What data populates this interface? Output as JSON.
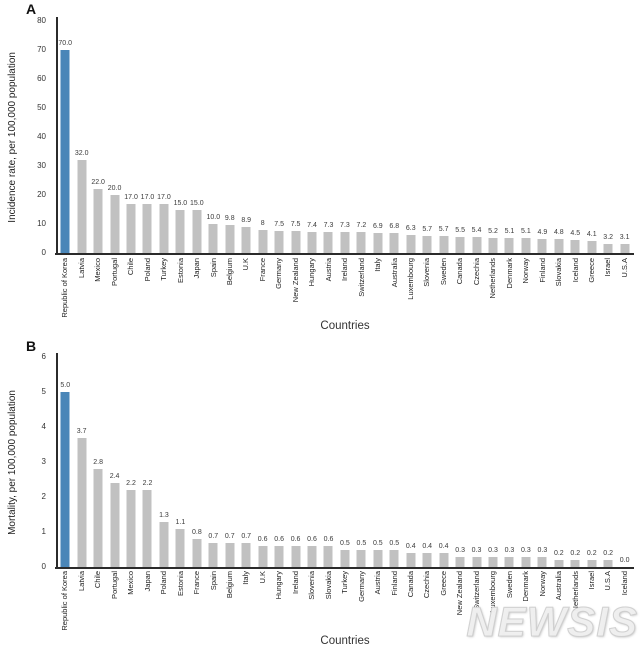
{
  "watermark": {
    "text": "NEWSIS"
  },
  "chart_data": [
    {
      "type": "bar",
      "panel": "A",
      "ylabel": "Incidence rate, per 100,000 population",
      "xlabel": "Countries",
      "ylim": [
        0,
        80
      ],
      "yticks": [
        0,
        10,
        20,
        30,
        40,
        50,
        60,
        70,
        80
      ],
      "grid": false,
      "legend": false,
      "highlight_index": 0,
      "highlight_color": "#4a86b8",
      "bar_color": "#c1c1c1",
      "categories": [
        "Republic of Korea",
        "Latvia",
        "Mexico",
        "Portugal",
        "Chile",
        "Poland",
        "Turkey",
        "Estonia",
        "Japan",
        "Spain",
        "Belgium",
        "U.K",
        "France",
        "Germany",
        "New Zealand",
        "Hungary",
        "Austria",
        "Ireland",
        "Switzerland",
        "Italy",
        "Australia",
        "Luxembourg",
        "Slovenia",
        "Sweden",
        "Canada",
        "Czechia",
        "Netherlands",
        "Denmark",
        "Norway",
        "Finland",
        "Slovakia",
        "Iceland",
        "Greece",
        "Israel",
        "U.S.A"
      ],
      "values": [
        70.0,
        32.0,
        22.0,
        20.0,
        17.0,
        17.0,
        17.0,
        15.0,
        15.0,
        10.0,
        9.8,
        8.9,
        8,
        7.5,
        7.5,
        7.4,
        7.3,
        7.3,
        7.2,
        6.9,
        6.8,
        6.3,
        5.7,
        5.7,
        5.5,
        5.4,
        5.2,
        5.1,
        5.1,
        4.9,
        4.8,
        4.5,
        4.1,
        3.2,
        3.1
      ],
      "labels": [
        "70.0",
        "32.0",
        "22.0",
        "20.0",
        "17.0",
        "17.0",
        "17.0",
        "15.0",
        "15.0",
        "10.0",
        "9.8",
        "8.9",
        "8",
        "7.5",
        "7.5",
        "7.4",
        "7.3",
        "7.3",
        "7.2",
        "6.9",
        "6.8",
        "6.3",
        "5.7",
        "5.7",
        "5.5",
        "5.4",
        "5.2",
        "5.1",
        "5.1",
        "4.9",
        "4.8",
        "4.5",
        "4.1",
        "3.2",
        "3.1"
      ]
    },
    {
      "type": "bar",
      "panel": "B",
      "ylabel": "Mortality, per 100,000 population",
      "xlabel": "Countries",
      "ylim": [
        0,
        6
      ],
      "yticks": [
        0,
        1,
        2,
        3,
        4,
        5,
        6
      ],
      "grid": false,
      "legend": false,
      "highlight_index": 0,
      "highlight_color": "#4a86b8",
      "bar_color": "#c1c1c1",
      "categories": [
        "Republic of Korea",
        "Latvia",
        "Chile",
        "Portugal",
        "Mexico",
        "Japan",
        "Poland",
        "Estonia",
        "France",
        "Spain",
        "Belgium",
        "Italy",
        "U.K",
        "Hungary",
        "Ireland",
        "Slovenia",
        "Slovakia",
        "Turkey",
        "Germany",
        "Austria",
        "Finland",
        "Canada",
        "Czechia",
        "Greece",
        "New Zealand",
        "Switzerland",
        "Luxembourg",
        "Sweden",
        "Denmark",
        "Norway",
        "Australia",
        "Netherlands",
        "Israel",
        "U.S.A",
        "Iceland"
      ],
      "values": [
        5.0,
        3.7,
        2.8,
        2.4,
        2.2,
        2.2,
        1.3,
        1.1,
        0.8,
        0.7,
        0.7,
        0.7,
        0.6,
        0.6,
        0.6,
        0.6,
        0.6,
        0.5,
        0.5,
        0.5,
        0.5,
        0.4,
        0.4,
        0.4,
        0.3,
        0.3,
        0.3,
        0.3,
        0.3,
        0.3,
        0.2,
        0.2,
        0.2,
        0.2,
        0.0
      ],
      "labels": [
        "5.0",
        "3.7",
        "2.8",
        "2.4",
        "2.2",
        "2.2",
        "1.3",
        "1.1",
        "0.8",
        "0.7",
        "0.7",
        "0.7",
        "0.6",
        "0.6",
        "0.6",
        "0.6",
        "0.6",
        "0.5",
        "0.5",
        "0.5",
        "0.5",
        "0.4",
        "0.4",
        "0.4",
        "0.3",
        "0.3",
        "0.3",
        "0.3",
        "0.3",
        "0.3",
        "0.2",
        "0.2",
        "0.2",
        "0.2",
        "0.0"
      ]
    }
  ]
}
